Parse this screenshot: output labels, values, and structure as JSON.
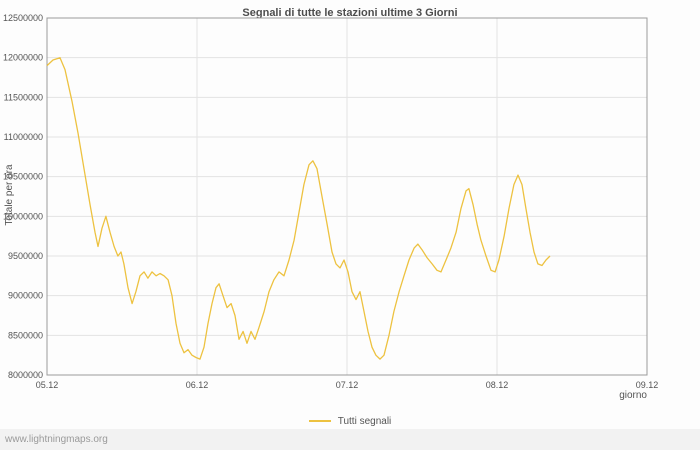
{
  "page": {
    "watermark": "www.lightningmaps.org"
  },
  "chart_data": {
    "type": "line",
    "title": "Segnali di tutte le stazioni ultime 3 Giorni",
    "xlabel": "giorno",
    "ylabel": "Totale per ora",
    "xlim": [
      5,
      9
    ],
    "ylim": [
      8000000,
      12500000
    ],
    "grid": true,
    "colors": {
      "series": "#edc240",
      "grid": "#e3e3e3",
      "border": "#9a9a9a",
      "text": "#545454"
    },
    "x_ticks": [
      {
        "value": 5,
        "label": "05.12"
      },
      {
        "value": 6,
        "label": "06.12"
      },
      {
        "value": 7,
        "label": "07.12"
      },
      {
        "value": 8,
        "label": "08.12"
      },
      {
        "value": 9,
        "label": "09.12"
      }
    ],
    "y_ticks": [
      8000000,
      8500000,
      9000000,
      9500000,
      10000000,
      10500000,
      11000000,
      11500000,
      12000000,
      12500000
    ],
    "legend": {
      "position": "bottom-center"
    },
    "series": [
      {
        "name": "Tutti segnali",
        "color": "#edc240",
        "points": [
          [
            5.0,
            11900000
          ],
          [
            5.04,
            11970000
          ],
          [
            5.087,
            12000000
          ],
          [
            5.12,
            11850000
          ],
          [
            5.167,
            11450000
          ],
          [
            5.207,
            11050000
          ],
          [
            5.247,
            10600000
          ],
          [
            5.287,
            10150000
          ],
          [
            5.32,
            9800000
          ],
          [
            5.34,
            9620000
          ],
          [
            5.367,
            9850000
          ],
          [
            5.393,
            10000000
          ],
          [
            5.42,
            9800000
          ],
          [
            5.447,
            9620000
          ],
          [
            5.473,
            9500000
          ],
          [
            5.493,
            9550000
          ],
          [
            5.513,
            9400000
          ],
          [
            5.54,
            9100000
          ],
          [
            5.567,
            8900000
          ],
          [
            5.593,
            9050000
          ],
          [
            5.62,
            9250000
          ],
          [
            5.647,
            9300000
          ],
          [
            5.673,
            9220000
          ],
          [
            5.7,
            9300000
          ],
          [
            5.727,
            9250000
          ],
          [
            5.753,
            9280000
          ],
          [
            5.78,
            9250000
          ],
          [
            5.807,
            9200000
          ],
          [
            5.833,
            9000000
          ],
          [
            5.86,
            8650000
          ],
          [
            5.887,
            8400000
          ],
          [
            5.913,
            8280000
          ],
          [
            5.94,
            8320000
          ],
          [
            5.967,
            8250000
          ],
          [
            5.993,
            8220000
          ],
          [
            6.02,
            8200000
          ],
          [
            6.047,
            8350000
          ],
          [
            6.073,
            8650000
          ],
          [
            6.1,
            8900000
          ],
          [
            6.127,
            9100000
          ],
          [
            6.147,
            9150000
          ],
          [
            6.173,
            9000000
          ],
          [
            6.2,
            8850000
          ],
          [
            6.227,
            8900000
          ],
          [
            6.253,
            8750000
          ],
          [
            6.28,
            8450000
          ],
          [
            6.307,
            8550000
          ],
          [
            6.333,
            8400000
          ],
          [
            6.36,
            8550000
          ],
          [
            6.387,
            8450000
          ],
          [
            6.413,
            8600000
          ],
          [
            6.447,
            8800000
          ],
          [
            6.48,
            9050000
          ],
          [
            6.513,
            9200000
          ],
          [
            6.547,
            9300000
          ],
          [
            6.58,
            9250000
          ],
          [
            6.613,
            9450000
          ],
          [
            6.647,
            9700000
          ],
          [
            6.68,
            10050000
          ],
          [
            6.713,
            10400000
          ],
          [
            6.747,
            10650000
          ],
          [
            6.773,
            10700000
          ],
          [
            6.8,
            10600000
          ],
          [
            6.833,
            10250000
          ],
          [
            6.867,
            9900000
          ],
          [
            6.9,
            9550000
          ],
          [
            6.927,
            9400000
          ],
          [
            6.953,
            9350000
          ],
          [
            6.98,
            9450000
          ],
          [
            7.007,
            9300000
          ],
          [
            7.033,
            9050000
          ],
          [
            7.06,
            8950000
          ],
          [
            7.087,
            9050000
          ],
          [
            7.113,
            8800000
          ],
          [
            7.14,
            8550000
          ],
          [
            7.167,
            8350000
          ],
          [
            7.193,
            8250000
          ],
          [
            7.22,
            8200000
          ],
          [
            7.247,
            8250000
          ],
          [
            7.28,
            8500000
          ],
          [
            7.313,
            8800000
          ],
          [
            7.347,
            9050000
          ],
          [
            7.38,
            9250000
          ],
          [
            7.413,
            9450000
          ],
          [
            7.447,
            9600000
          ],
          [
            7.473,
            9650000
          ],
          [
            7.5,
            9580000
          ],
          [
            7.533,
            9480000
          ],
          [
            7.567,
            9400000
          ],
          [
            7.6,
            9320000
          ],
          [
            7.627,
            9300000
          ],
          [
            7.66,
            9450000
          ],
          [
            7.693,
            9600000
          ],
          [
            7.727,
            9800000
          ],
          [
            7.76,
            10100000
          ],
          [
            7.793,
            10320000
          ],
          [
            7.813,
            10350000
          ],
          [
            7.84,
            10150000
          ],
          [
            7.867,
            9900000
          ],
          [
            7.893,
            9700000
          ],
          [
            7.927,
            9500000
          ],
          [
            7.96,
            9320000
          ],
          [
            7.987,
            9300000
          ],
          [
            8.013,
            9450000
          ],
          [
            8.047,
            9750000
          ],
          [
            8.08,
            10100000
          ],
          [
            8.113,
            10400000
          ],
          [
            8.14,
            10520000
          ],
          [
            8.167,
            10400000
          ],
          [
            8.193,
            10100000
          ],
          [
            8.22,
            9800000
          ],
          [
            8.247,
            9550000
          ],
          [
            8.273,
            9400000
          ],
          [
            8.3,
            9380000
          ],
          [
            8.327,
            9450000
          ],
          [
            8.353,
            9500000
          ]
        ]
      }
    ]
  }
}
